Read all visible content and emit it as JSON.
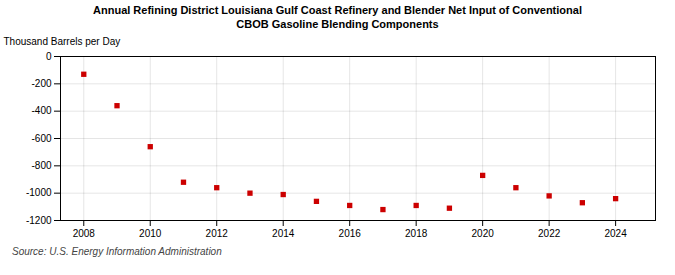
{
  "chart_data": {
    "type": "scatter",
    "title": "Annual Refining District Louisiana Gulf Coast Refinery and Blender Net Input of Conventional\nCBOB Gasoline Blending Components",
    "source": "Source: U.S. Energy Information Administration",
    "ylabel": "Thousand Barrels per Day",
    "x": [
      2008,
      2009,
      2010,
      2011,
      2012,
      2013,
      2014,
      2015,
      2016,
      2017,
      2018,
      2019,
      2020,
      2021,
      2022,
      2023,
      2024
    ],
    "values": [
      -130,
      -360,
      -660,
      -920,
      -960,
      -1000,
      -1010,
      -1060,
      -1090,
      -1120,
      -1090,
      -1110,
      -870,
      -960,
      -1020,
      -1070,
      -1040
    ],
    "color": "#cc0000",
    "marker": "square",
    "xlim": [
      2007.3,
      2025.2
    ],
    "xticks": [
      2008,
      2010,
      2012,
      2014,
      2016,
      2018,
      2020,
      2022,
      2024
    ],
    "ylim": [
      -1200,
      0
    ],
    "yticks": [
      0,
      -200,
      -400,
      -600,
      -800,
      -1000,
      -1200
    ],
    "grid": true
  }
}
